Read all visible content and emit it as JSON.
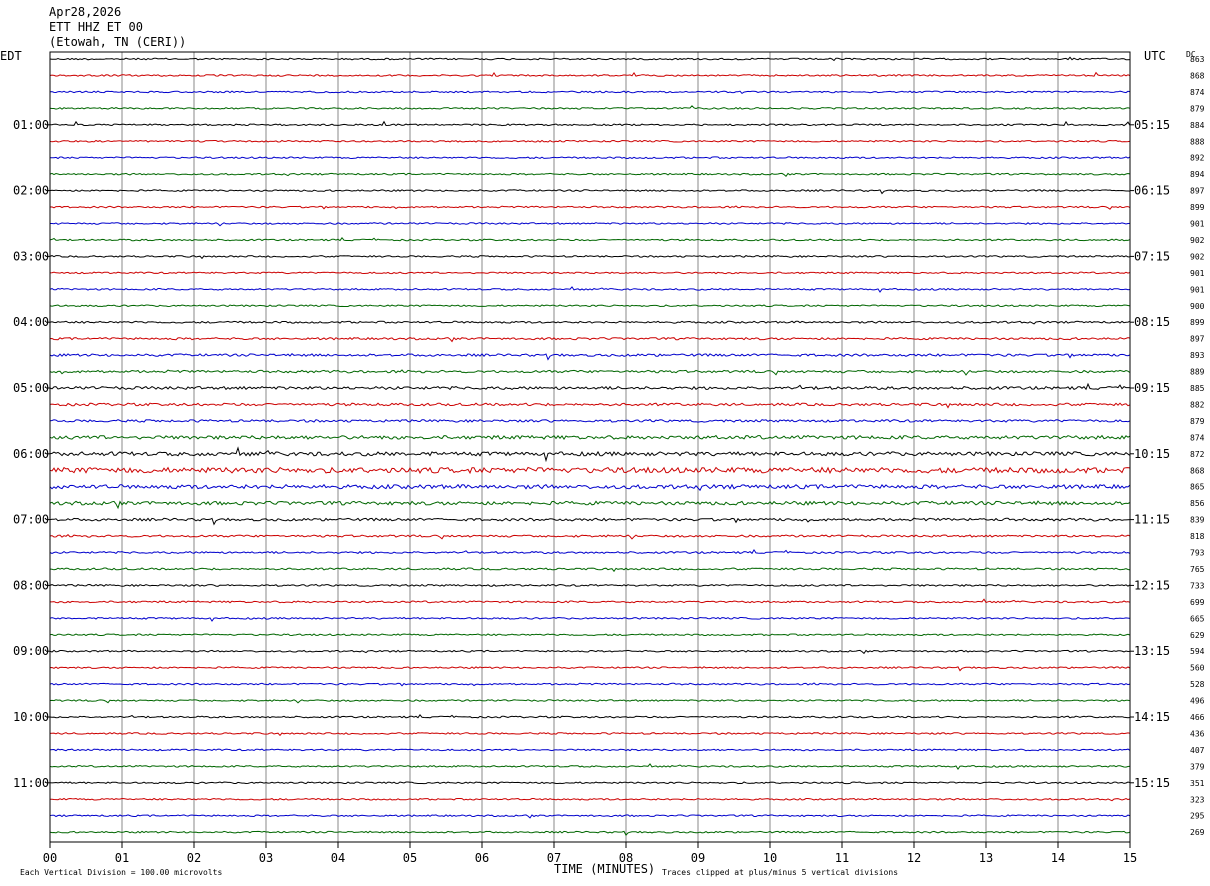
{
  "header": {
    "date": "Apr28,2026",
    "station": "ETT HHZ ET 00",
    "location": "(Etowah, TN (CERI))"
  },
  "left_tz": "EDT",
  "right_tz": "UTC",
  "dc_label": "DC",
  "chart_data": {
    "type": "line",
    "title": "",
    "xlabel": "TIME (MINUTES)",
    "x_ticks": [
      "00",
      "01",
      "02",
      "03",
      "04",
      "05",
      "06",
      "07",
      "08",
      "09",
      "10",
      "11",
      "12",
      "13",
      "14",
      "15"
    ],
    "xlim": [
      0,
      15
    ],
    "line_colors": [
      "#000000",
      "#cc0000",
      "#0000cc",
      "#006600"
    ],
    "left_hour_labels": [
      "01:00",
      "02:00",
      "03:00",
      "04:00",
      "05:00",
      "06:00",
      "07:00",
      "08:00",
      "09:00",
      "10:00",
      "11:00"
    ],
    "right_hour_labels": [
      "05:15",
      "06:15",
      "07:15",
      "08:15",
      "09:15",
      "10:15",
      "11:15",
      "12:15",
      "13:15",
      "14:15",
      "15:15"
    ],
    "dc_values": [
      "863",
      "868",
      "874",
      "879",
      "884",
      "888",
      "892",
      "894",
      "897",
      "899",
      "901",
      "902",
      "902",
      "901",
      "901",
      "900",
      "899",
      "897",
      "893",
      "889",
      "885",
      "882",
      "879",
      "874",
      "872",
      "868",
      "865",
      "856",
      "839",
      "818",
      "793",
      "765",
      "733",
      "699",
      "665",
      "629",
      "594",
      "560",
      "528",
      "496",
      "466",
      "436",
      "407",
      "379",
      "351",
      "323",
      "295",
      "269"
    ],
    "trace_activity": [
      1,
      1,
      1,
      1,
      1,
      1,
      1,
      1,
      1,
      1,
      1,
      1,
      1,
      1,
      1,
      1,
      1.2,
      1.3,
      1.5,
      1.5,
      1.8,
      1.6,
      1.5,
      2.2,
      2.4,
      3.4,
      2.5,
      2.2,
      1.6,
      1.3,
      1.2,
      1.2,
      1.1,
      1.1,
      1,
      1,
      1,
      1,
      1,
      1,
      1,
      1,
      1,
      1,
      1,
      1,
      1,
      1
    ]
  },
  "footer": {
    "scale_note": "Each Vertical Division =  100.00 microvolts",
    "clip_note": "Traces clipped at plus/minus 5 vertical divisions"
  }
}
